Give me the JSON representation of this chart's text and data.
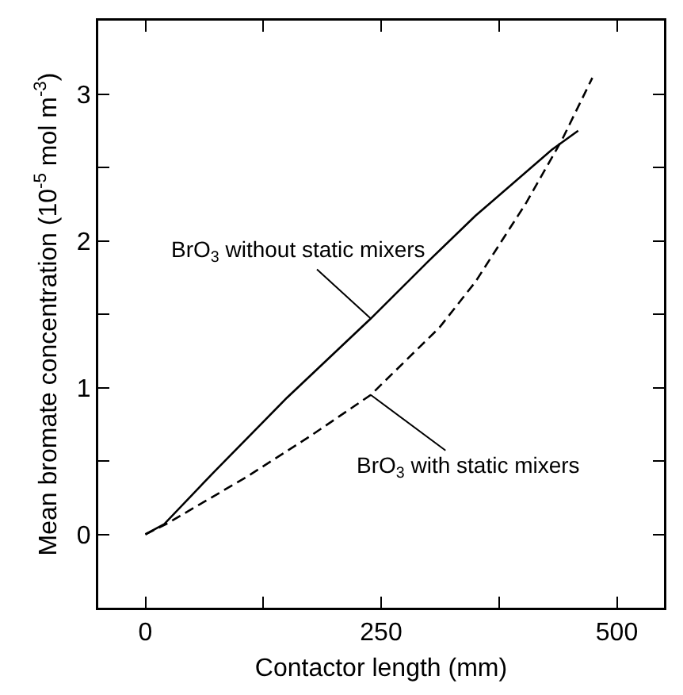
{
  "chart_data": {
    "type": "line",
    "xlabel": "Contactor length (mm)",
    "ylabel": "Mean bromate concentration (10$^{-5}$ mol m$^{-3}$)",
    "xlim": [
      -50,
      550
    ],
    "xticks": [
      0,
      {
        "value": 125,
        "label": null
      },
      250,
      {
        "value": 375,
        "label": null
      },
      500
    ],
    "ylim": [
      -0.5,
      3.5
    ],
    "yticks": [
      {
        "value": -0.5,
        "label": null
      },
      0,
      {
        "value": 0.5,
        "label": null
      },
      1,
      {
        "value": 1.5,
        "label": null
      },
      2,
      {
        "value": 2.5,
        "label": null
      },
      3
    ],
    "marker": "none",
    "series": [
      {
        "color": "#000000",
        "line_style": "solid",
        "x": [
          0,
          20,
          72,
          150,
          239,
          300,
          350,
          431,
          459
        ],
        "values": [
          0,
          0.07,
          0.42,
          0.93,
          1.47,
          1.86,
          2.17,
          2.62,
          2.75
        ]
      },
      {
        "color": "#000000",
        "line_style": "dashed",
        "x": [
          0,
          22,
          107,
          175,
          239,
          312,
          350,
          404,
          442,
          474
        ],
        "values": [
          0,
          0.07,
          0.39,
          0.67,
          0.95,
          1.41,
          1.72,
          2.26,
          2.69,
          3.11
        ]
      }
    ],
    "annotations": [
      {
        "text": "BrO$_{3}$ without static mixers",
        "x": 239,
        "y": 1.47
      },
      {
        "text": "BrO$_{3}$ with static mixers",
        "x": 239,
        "y": 0.95
      }
    ]
  }
}
